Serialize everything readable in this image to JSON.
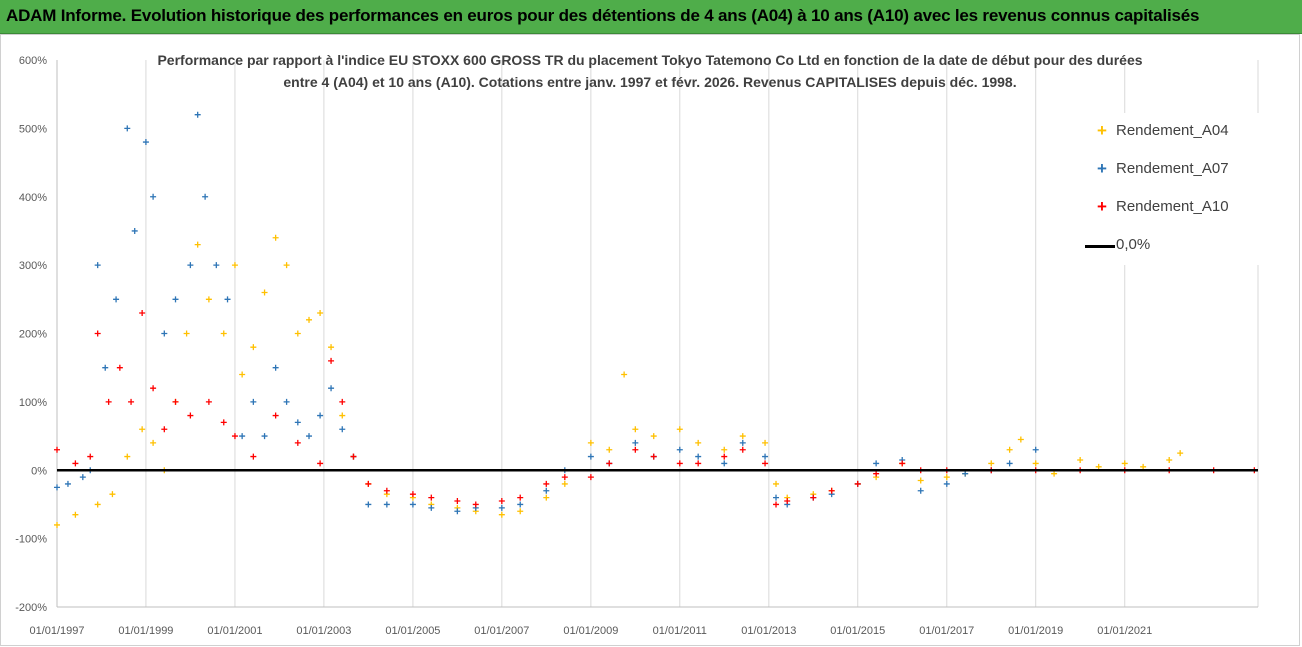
{
  "banner": {
    "title": "ADAM Informe. Evolution historique des performances en euros pour des détentions de 4 ans (A04) à 10 ans (A10) avec les revenus connus capitalisés"
  },
  "colors": {
    "banner_bg": "#4fad4a",
    "A04": "#ffc000",
    "A07": "#2e75b6",
    "A10": "#ff0000",
    "zero_line": "#000000",
    "grid": "#d9d9d9"
  },
  "chart_data": {
    "type": "scatter",
    "title_line1": "Performance par rapport à l'indice EU STOXX 600 GROSS TR  du placement Tokyo Tatemono Co Ltd en fonction de la date de début pour des durées",
    "title_line2": "entre 4 (A04) et 10 ans (A10). Cotations entre janv. 1997 et févr. 2026. Revenus CAPITALISES depuis déc. 1998.",
    "x_axis": {
      "type": "date",
      "range": [
        "1997-01-01",
        "2023-12-31"
      ],
      "tick_labels": [
        "01/01/1997",
        "01/01/1999",
        "01/01/2001",
        "01/01/2003",
        "01/01/2005",
        "01/01/2007",
        "01/01/2009",
        "01/01/2011",
        "01/01/2013",
        "01/01/2015",
        "01/01/2017",
        "01/01/2019",
        "01/01/2021"
      ]
    },
    "y_axis": {
      "range": [
        -200,
        600
      ],
      "unit": "%",
      "tick_labels": [
        "600%",
        "500%",
        "400%",
        "300%",
        "200%",
        "100%",
        "0%",
        "-100%",
        "-200%"
      ]
    },
    "grid": "vertical gridlines at each x tick",
    "legend": {
      "position": "top-right",
      "entries": [
        "Rendement_A04",
        "Rendement_A07",
        "Rendement_A10",
        "0,0%"
      ]
    },
    "series": [
      {
        "name": "Rendement_A04",
        "marker": "+",
        "points": [
          [
            "1997-01-01",
            -80
          ],
          [
            "1997-06-01",
            -65
          ],
          [
            "1997-12-01",
            -50
          ],
          [
            "1998-04-01",
            -35
          ],
          [
            "1998-08-01",
            20
          ],
          [
            "1998-12-01",
            60
          ],
          [
            "1999-03-01",
            40
          ],
          [
            "1999-06-01",
            0
          ],
          [
            "1999-09-01",
            100
          ],
          [
            "1999-12-01",
            200
          ],
          [
            "2000-03-01",
            330
          ],
          [
            "2000-06-01",
            250
          ],
          [
            "2000-10-01",
            200
          ],
          [
            "2001-01-01",
            300
          ],
          [
            "2001-03-01",
            140
          ],
          [
            "2001-06-01",
            180
          ],
          [
            "2001-09-01",
            260
          ],
          [
            "2001-12-01",
            340
          ],
          [
            "2002-03-01",
            300
          ],
          [
            "2002-06-01",
            200
          ],
          [
            "2002-09-01",
            220
          ],
          [
            "2002-12-01",
            230
          ],
          [
            "2003-03-01",
            180
          ],
          [
            "2003-06-01",
            80
          ],
          [
            "2003-09-01",
            20
          ],
          [
            "2004-01-01",
            -20
          ],
          [
            "2004-06-01",
            -35
          ],
          [
            "2005-01-01",
            -40
          ],
          [
            "2005-06-01",
            -50
          ],
          [
            "2006-01-01",
            -55
          ],
          [
            "2006-06-01",
            -60
          ],
          [
            "2007-01-01",
            -65
          ],
          [
            "2007-06-01",
            -60
          ],
          [
            "2008-01-01",
            -40
          ],
          [
            "2008-06-01",
            -20
          ],
          [
            "2009-01-01",
            40
          ],
          [
            "2009-06-01",
            30
          ],
          [
            "2009-10-01",
            140
          ],
          [
            "2010-01-01",
            60
          ],
          [
            "2010-06-01",
            50
          ],
          [
            "2011-01-01",
            60
          ],
          [
            "2011-06-01",
            40
          ],
          [
            "2012-01-01",
            30
          ],
          [
            "2012-06-01",
            50
          ],
          [
            "2012-12-01",
            40
          ],
          [
            "2013-03-01",
            -20
          ],
          [
            "2013-06-01",
            -40
          ],
          [
            "2014-01-01",
            -35
          ],
          [
            "2014-06-01",
            -30
          ],
          [
            "2015-01-01",
            -20
          ],
          [
            "2015-06-01",
            -10
          ],
          [
            "2016-01-01",
            10
          ],
          [
            "2016-06-01",
            -15
          ],
          [
            "2017-01-01",
            -10
          ],
          [
            "2017-06-01",
            -5
          ],
          [
            "2018-01-01",
            10
          ],
          [
            "2018-06-01",
            30
          ],
          [
            "2018-09-01",
            45
          ],
          [
            "2019-01-01",
            10
          ],
          [
            "2019-06-01",
            -5
          ],
          [
            "2020-01-01",
            15
          ],
          [
            "2020-06-01",
            5
          ],
          [
            "2021-01-01",
            10
          ],
          [
            "2021-06-01",
            5
          ],
          [
            "2022-01-01",
            15
          ],
          [
            "2022-04-01",
            25
          ]
        ]
      },
      {
        "name": "Rendement_A07",
        "marker": "+",
        "points": [
          [
            "1997-01-01",
            -25
          ],
          [
            "1997-04-01",
            -20
          ],
          [
            "1997-08-01",
            -10
          ],
          [
            "1997-10-01",
            0
          ],
          [
            "1997-12-01",
            300
          ],
          [
            "1998-02-01",
            150
          ],
          [
            "1998-05-01",
            250
          ],
          [
            "1998-08-01",
            500
          ],
          [
            "1998-10-01",
            350
          ],
          [
            "1999-01-01",
            480
          ],
          [
            "1999-03-01",
            400
          ],
          [
            "1999-06-01",
            200
          ],
          [
            "1999-09-01",
            250
          ],
          [
            "2000-01-01",
            300
          ],
          [
            "2000-03-01",
            520
          ],
          [
            "2000-05-01",
            400
          ],
          [
            "2000-08-01",
            300
          ],
          [
            "2000-11-01",
            250
          ],
          [
            "2001-03-01",
            50
          ],
          [
            "2001-06-01",
            100
          ],
          [
            "2001-09-01",
            50
          ],
          [
            "2001-12-01",
            150
          ],
          [
            "2002-03-01",
            100
          ],
          [
            "2002-06-01",
            70
          ],
          [
            "2002-09-01",
            50
          ],
          [
            "2002-12-01",
            80
          ],
          [
            "2003-03-01",
            120
          ],
          [
            "2003-06-01",
            60
          ],
          [
            "2003-09-01",
            20
          ],
          [
            "2004-01-01",
            -50
          ],
          [
            "2004-06-01",
            -50
          ],
          [
            "2005-01-01",
            -50
          ],
          [
            "2005-06-01",
            -55
          ],
          [
            "2006-01-01",
            -60
          ],
          [
            "2006-06-01",
            -55
          ],
          [
            "2007-01-01",
            -55
          ],
          [
            "2007-06-01",
            -50
          ],
          [
            "2008-01-01",
            -30
          ],
          [
            "2008-06-01",
            0
          ],
          [
            "2009-01-01",
            20
          ],
          [
            "2009-06-01",
            10
          ],
          [
            "2010-01-01",
            40
          ],
          [
            "2010-06-01",
            20
          ],
          [
            "2011-01-01",
            30
          ],
          [
            "2011-06-01",
            20
          ],
          [
            "2012-01-01",
            10
          ],
          [
            "2012-06-01",
            40
          ],
          [
            "2012-12-01",
            20
          ],
          [
            "2013-03-01",
            -40
          ],
          [
            "2013-06-01",
            -50
          ],
          [
            "2014-01-01",
            -40
          ],
          [
            "2014-06-01",
            -35
          ],
          [
            "2015-01-01",
            -20
          ],
          [
            "2015-06-01",
            10
          ],
          [
            "2016-01-01",
            15
          ],
          [
            "2016-06-01",
            -30
          ],
          [
            "2017-01-01",
            -20
          ],
          [
            "2017-06-01",
            -5
          ],
          [
            "2018-01-01",
            0
          ],
          [
            "2018-06-01",
            10
          ],
          [
            "2019-01-01",
            30
          ]
        ]
      },
      {
        "name": "Rendement_A10",
        "marker": "+",
        "points": [
          [
            "1997-01-01",
            30
          ],
          [
            "1997-06-01",
            10
          ],
          [
            "1997-10-01",
            20
          ],
          [
            "1997-12-01",
            200
          ],
          [
            "1998-03-01",
            100
          ],
          [
            "1998-06-01",
            150
          ],
          [
            "1998-09-01",
            100
          ],
          [
            "1998-12-01",
            230
          ],
          [
            "1999-03-01",
            120
          ],
          [
            "1999-06-01",
            60
          ],
          [
            "1999-09-01",
            100
          ],
          [
            "2000-01-01",
            80
          ],
          [
            "2000-06-01",
            100
          ],
          [
            "2000-10-01",
            70
          ],
          [
            "2001-01-01",
            50
          ],
          [
            "2001-06-01",
            20
          ],
          [
            "2001-12-01",
            80
          ],
          [
            "2002-06-01",
            40
          ],
          [
            "2002-12-01",
            10
          ],
          [
            "2003-03-01",
            160
          ],
          [
            "2003-06-01",
            100
          ],
          [
            "2003-09-01",
            20
          ],
          [
            "2004-01-01",
            -20
          ],
          [
            "2004-06-01",
            -30
          ],
          [
            "2005-01-01",
            -35
          ],
          [
            "2005-06-01",
            -40
          ],
          [
            "2006-01-01",
            -45
          ],
          [
            "2006-06-01",
            -50
          ],
          [
            "2007-01-01",
            -45
          ],
          [
            "2007-06-01",
            -40
          ],
          [
            "2008-01-01",
            -20
          ],
          [
            "2008-06-01",
            -10
          ],
          [
            "2009-01-01",
            -10
          ],
          [
            "2009-06-01",
            10
          ],
          [
            "2010-01-01",
            30
          ],
          [
            "2010-06-01",
            20
          ],
          [
            "2011-01-01",
            10
          ],
          [
            "2011-06-01",
            10
          ],
          [
            "2012-01-01",
            20
          ],
          [
            "2012-06-01",
            30
          ],
          [
            "2012-12-01",
            10
          ],
          [
            "2013-03-01",
            -50
          ],
          [
            "2013-06-01",
            -45
          ],
          [
            "2014-01-01",
            -40
          ],
          [
            "2014-06-01",
            -30
          ],
          [
            "2015-01-01",
            -20
          ],
          [
            "2015-06-01",
            -5
          ],
          [
            "2016-01-01",
            10
          ],
          [
            "2016-06-01",
            0
          ],
          [
            "2017-01-01",
            0
          ],
          [
            "2018-01-01",
            0
          ],
          [
            "2019-01-01",
            0
          ],
          [
            "2020-01-01",
            0
          ],
          [
            "2021-01-01",
            0
          ],
          [
            "2022-01-01",
            0
          ],
          [
            "2023-01-01",
            0
          ],
          [
            "2023-12-01",
            0
          ]
        ]
      }
    ],
    "reference_line": {
      "name": "0,0%",
      "y": 0
    }
  }
}
